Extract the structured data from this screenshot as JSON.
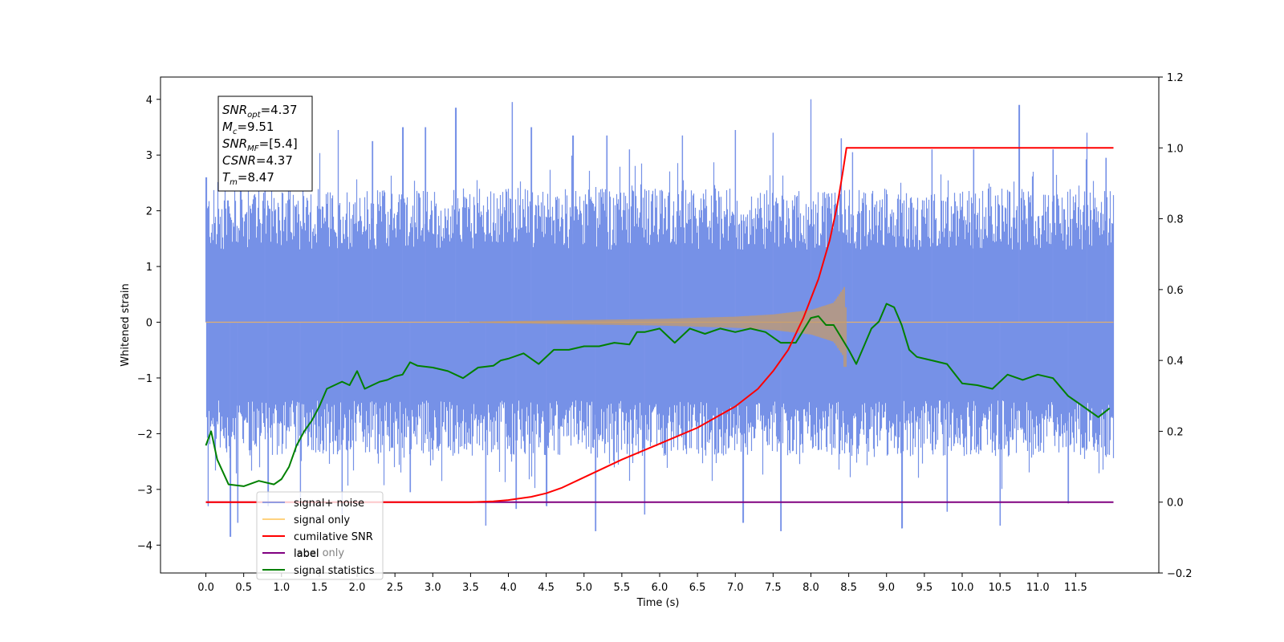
{
  "chart_data": {
    "type": "line",
    "xlabel": "Time (s)",
    "ylabel": "Whitened strain",
    "xlim": [
      -0.6,
      12.6
    ],
    "x_ticks": [
      0.0,
      0.5,
      1.0,
      1.5,
      2.0,
      2.5,
      3.0,
      3.5,
      4.0,
      4.5,
      5.0,
      5.5,
      6.0,
      6.5,
      7.0,
      7.5,
      8.0,
      8.5,
      9.0,
      9.5,
      10.0,
      10.5,
      11.0,
      11.5
    ],
    "x_tick_labels": [
      "0.0",
      "0.5",
      "1.0",
      "1.5",
      "2.0",
      "2.5",
      "3.0",
      "3.5",
      "4.0",
      "4.5",
      "5.0",
      "5.5",
      "6.0",
      "6.5",
      "7.0",
      "7.5",
      "8.0",
      "8.5",
      "9.0",
      "9.5",
      "10.0",
      "10.5",
      "11.0",
      "11.5"
    ],
    "ylim_left": [
      -4.5,
      4.4
    ],
    "y_left_ticks": [
      -4,
      -3,
      -2,
      -1,
      0,
      1,
      2,
      3,
      4
    ],
    "y_left_tick_labels": [
      "−4",
      "−3",
      "−2",
      "−1",
      "0",
      "1",
      "2",
      "3",
      "4"
    ],
    "ylim_right": [
      -0.2,
      1.2
    ],
    "y_right_ticks": [
      -0.2,
      0.0,
      0.2,
      0.4,
      0.6,
      0.8,
      1.0,
      1.2
    ],
    "y_right_tick_labels": [
      "−0.2",
      "0.0",
      "0.2",
      "0.4",
      "0.6",
      "0.8",
      "1.0",
      "1.2"
    ],
    "grid": false,
    "legend_position": "lower-left",
    "legend": [
      {
        "label": "signal+ noise",
        "color": "#6f8be6",
        "alpha": 0.75
      },
      {
        "label": "signal only",
        "color": "#ffa500",
        "alpha": 0.5
      },
      {
        "label": "cumilative SNR",
        "color": "#ff0000",
        "alpha": 1
      },
      {
        "label": "label",
        "color": "#800080",
        "alpha": 1
      },
      {
        "label": "signal statistics",
        "color": "#008000",
        "alpha": 1
      }
    ],
    "hidden_legend_text": "label only",
    "annotation": [
      {
        "base": "SNR",
        "sub": "opt",
        "rest": "=4.37"
      },
      {
        "base": "M",
        "sub": "c",
        "rest": "=9.51"
      },
      {
        "base": "SNR",
        "sub": "MF",
        "rest": "=[5.4]"
      },
      {
        "base": "CSNR",
        "sub": "",
        "rest": "=4.37"
      },
      {
        "base": "T",
        "sub": "m",
        "rest": "=8.47"
      }
    ],
    "series": [
      {
        "name": "signal+ noise",
        "axis": "left",
        "kind": "noise_band",
        "x_range": [
          0.0,
          12.0
        ],
        "typical_range": [
          -2.0,
          2.0
        ],
        "spike_peaks": [
          {
            "x": 0.0,
            "y": 2.6
          },
          {
            "x": 0.03,
            "y": -3.3
          },
          {
            "x": 0.32,
            "y": -3.85
          },
          {
            "x": 0.42,
            "y": -3.6
          },
          {
            "x": 0.78,
            "y": 3.2
          },
          {
            "x": 0.82,
            "y": -3.3
          },
          {
            "x": 1.25,
            "y": -3.3
          },
          {
            "x": 1.75,
            "y": 3.45
          },
          {
            "x": 1.8,
            "y": -3.45
          },
          {
            "x": 2.2,
            "y": 3.25
          },
          {
            "x": 2.6,
            "y": 3.5
          },
          {
            "x": 2.7,
            "y": -3.05
          },
          {
            "x": 2.9,
            "y": 3.5
          },
          {
            "x": 3.3,
            "y": 3.85
          },
          {
            "x": 3.7,
            "y": -3.65
          },
          {
            "x": 4.05,
            "y": 3.95
          },
          {
            "x": 4.1,
            "y": -3.35
          },
          {
            "x": 4.3,
            "y": 3.5
          },
          {
            "x": 4.5,
            "y": -3.3
          },
          {
            "x": 4.85,
            "y": 3.35
          },
          {
            "x": 5.15,
            "y": -3.75
          },
          {
            "x": 5.3,
            "y": 3.35
          },
          {
            "x": 5.6,
            "y": 3.1
          },
          {
            "x": 5.8,
            "y": -3.45
          },
          {
            "x": 6.3,
            "y": 3.35
          },
          {
            "x": 7.0,
            "y": 3.45
          },
          {
            "x": 7.1,
            "y": -3.6
          },
          {
            "x": 7.5,
            "y": 3.4
          },
          {
            "x": 7.6,
            "y": -3.75
          },
          {
            "x": 8.0,
            "y": 4.0
          },
          {
            "x": 8.4,
            "y": 3.3
          },
          {
            "x": 8.55,
            "y": 3.05
          },
          {
            "x": 9.2,
            "y": -3.7
          },
          {
            "x": 9.6,
            "y": 3.1
          },
          {
            "x": 9.8,
            "y": -3.4
          },
          {
            "x": 10.15,
            "y": 3.1
          },
          {
            "x": 10.5,
            "y": -3.65
          },
          {
            "x": 10.75,
            "y": 3.9
          },
          {
            "x": 11.2,
            "y": 3.1
          },
          {
            "x": 11.4,
            "y": -3.25
          },
          {
            "x": 11.65,
            "y": 3.4
          },
          {
            "x": 11.9,
            "y": 2.95
          }
        ]
      },
      {
        "name": "signal only",
        "axis": "left",
        "kind": "chirp",
        "x_range": [
          0.0,
          12.0
        ],
        "merger_time": 8.47,
        "amplitude": [
          {
            "x": 0.0,
            "y": 0.0
          },
          {
            "x": 3.5,
            "y": 0.01
          },
          {
            "x": 5.0,
            "y": 0.04
          },
          {
            "x": 6.0,
            "y": 0.06
          },
          {
            "x": 7.0,
            "y": 0.1
          },
          {
            "x": 7.5,
            "y": 0.14
          },
          {
            "x": 8.0,
            "y": 0.22
          },
          {
            "x": 8.3,
            "y": 0.35
          },
          {
            "x": 8.45,
            "y": 0.65
          },
          {
            "x": 8.47,
            "y": 0.0
          },
          {
            "x": 12.0,
            "y": 0.0
          }
        ],
        "min_after_peak": -0.8
      },
      {
        "name": "cumilative SNR",
        "axis": "right",
        "x": [
          0.0,
          3.5,
          3.8,
          4.0,
          4.3,
          4.5,
          4.7,
          5.0,
          5.5,
          6.0,
          6.5,
          7.0,
          7.3,
          7.5,
          7.7,
          7.9,
          8.1,
          8.25,
          8.35,
          8.42,
          8.47,
          12.0
        ],
        "y": [
          0.0,
          0.0,
          0.002,
          0.006,
          0.015,
          0.025,
          0.04,
          0.07,
          0.12,
          0.165,
          0.21,
          0.27,
          0.32,
          0.37,
          0.43,
          0.52,
          0.63,
          0.74,
          0.84,
          0.93,
          1.0,
          1.0
        ]
      },
      {
        "name": "label",
        "axis": "right",
        "x": [
          0.0,
          12.0
        ],
        "y": [
          0.0,
          0.0
        ]
      },
      {
        "name": "signal statistics",
        "axis": "right",
        "x": [
          0.0,
          0.07,
          0.15,
          0.3,
          0.5,
          0.7,
          0.9,
          1.0,
          1.1,
          1.2,
          1.3,
          1.4,
          1.5,
          1.6,
          1.7,
          1.8,
          1.9,
          2.0,
          2.1,
          2.2,
          2.3,
          2.4,
          2.5,
          2.6,
          2.7,
          2.8,
          3.0,
          3.2,
          3.4,
          3.6,
          3.8,
          3.9,
          4.0,
          4.2,
          4.4,
          4.6,
          4.8,
          5.0,
          5.2,
          5.4,
          5.6,
          5.7,
          5.8,
          6.0,
          6.2,
          6.4,
          6.6,
          6.8,
          7.0,
          7.2,
          7.4,
          7.6,
          7.8,
          8.0,
          8.1,
          8.2,
          8.3,
          8.4,
          8.5,
          8.6,
          8.7,
          8.8,
          8.9,
          9.0,
          9.1,
          9.2,
          9.3,
          9.4,
          9.6,
          9.8,
          10.0,
          10.2,
          10.4,
          10.6,
          10.8,
          11.0,
          11.2,
          11.4,
          11.6,
          11.8,
          11.95
        ],
        "y": [
          0.16,
          0.2,
          0.12,
          0.05,
          0.045,
          0.06,
          0.05,
          0.065,
          0.1,
          0.16,
          0.2,
          0.23,
          0.27,
          0.32,
          0.33,
          0.34,
          0.33,
          0.37,
          0.32,
          0.33,
          0.34,
          0.345,
          0.355,
          0.36,
          0.395,
          0.385,
          0.38,
          0.37,
          0.35,
          0.38,
          0.385,
          0.4,
          0.405,
          0.42,
          0.39,
          0.43,
          0.43,
          0.44,
          0.44,
          0.45,
          0.445,
          0.48,
          0.48,
          0.49,
          0.45,
          0.49,
          0.475,
          0.49,
          0.48,
          0.49,
          0.48,
          0.45,
          0.45,
          0.52,
          0.525,
          0.5,
          0.5,
          0.465,
          0.43,
          0.39,
          0.44,
          0.49,
          0.51,
          0.56,
          0.55,
          0.5,
          0.43,
          0.41,
          0.4,
          0.39,
          0.335,
          0.33,
          0.32,
          0.36,
          0.345,
          0.36,
          0.35,
          0.3,
          0.27,
          0.24,
          0.265
        ]
      }
    ]
  }
}
